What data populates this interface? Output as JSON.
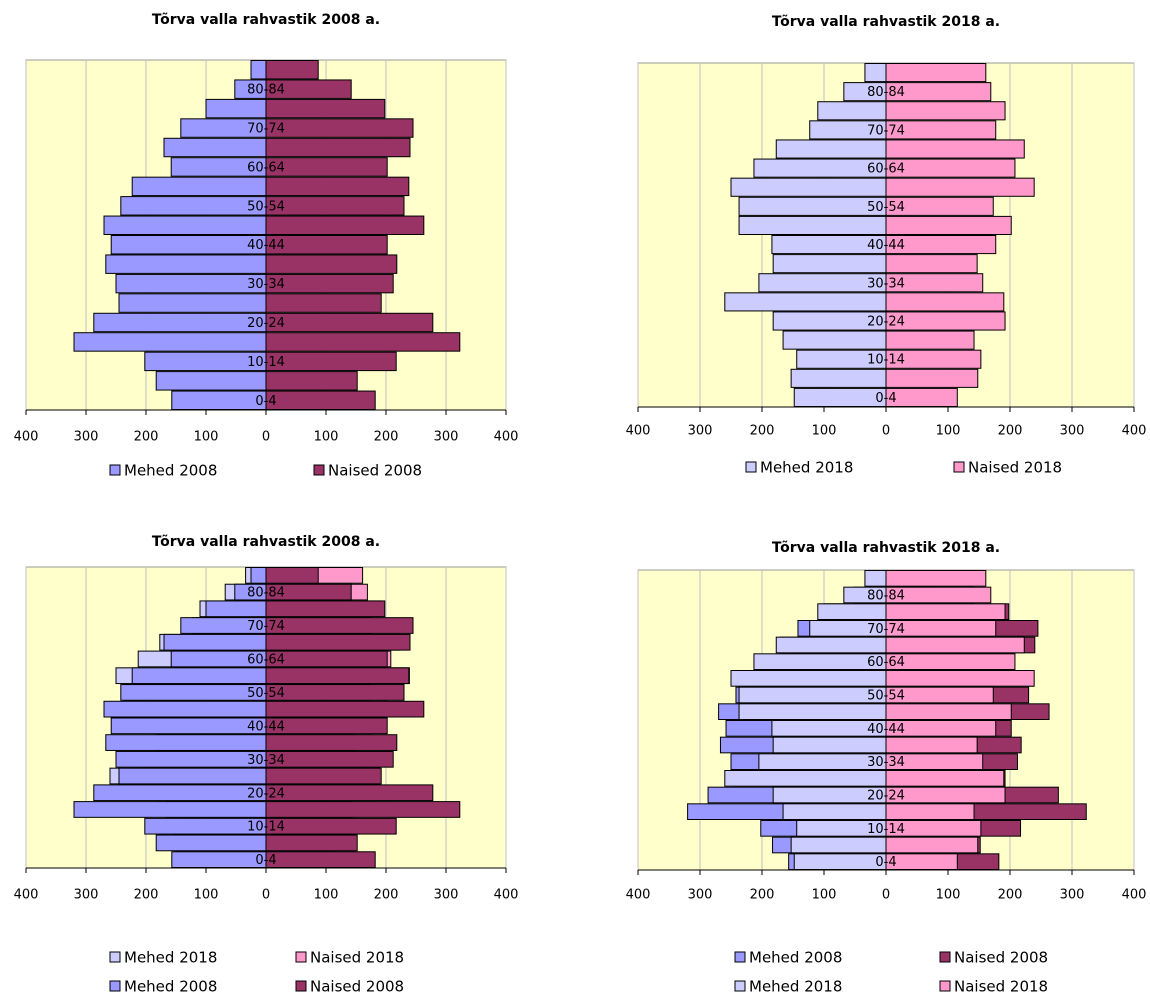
{
  "chart_data": [
    {
      "type": "pyramid",
      "title": "Tõrva valla rahvastik 2008 a.",
      "categories": [
        "0-4",
        null,
        "10-14",
        null,
        "20-24",
        null,
        "30-34",
        null,
        "40-44",
        null,
        "50-54",
        null,
        "60-64",
        null,
        "70-74",
        null,
        "80-84",
        null
      ],
      "series": [
        {
          "name": "Mehed 2008",
          "color": "#9999ff",
          "values": [
            -157,
            -183,
            -202,
            -320,
            -287,
            -245,
            -250,
            -267,
            -258,
            -270,
            -242,
            -223,
            -158,
            -170,
            -142,
            -100,
            -52,
            -25
          ]
        },
        {
          "name": "Naised 2008",
          "color": "#993366",
          "values": [
            182,
            152,
            217,
            323,
            278,
            192,
            212,
            218,
            202,
            263,
            230,
            238,
            202,
            240,
            245,
            198,
            142,
            87
          ]
        }
      ],
      "xlim": [
        -400,
        400
      ],
      "xticks": [
        {
          "value": -400,
          "label": "400"
        },
        {
          "value": -300,
          "label": "300"
        },
        {
          "value": -200,
          "label": "200"
        },
        {
          "value": -100,
          "label": "100"
        },
        0,
        100,
        200,
        300,
        400
      ],
      "grid": true,
      "negative_tick_label_color": "#ff0000",
      "plot_background": "#ffffcc"
    },
    {
      "type": "pyramid",
      "title": "Tõrva valla rahvastik 2018 a.",
      "categories": [
        "0-4",
        null,
        "10-14",
        null,
        "20-24",
        null,
        "30-34",
        null,
        "40-44",
        null,
        "50-54",
        null,
        "60-64",
        null,
        "70-74",
        null,
        "80-84",
        null
      ],
      "series": [
        {
          "name": "Mehed 2018",
          "color": "#ccccff",
          "values": [
            -148,
            -153,
            -144,
            -166,
            -182,
            -260,
            -205,
            -182,
            -184,
            -237,
            -237,
            -250,
            -213,
            -177,
            -123,
            -110,
            -68,
            -34
          ]
        },
        {
          "name": "Naised 2018",
          "color": "#ff99cc",
          "values": [
            115,
            148,
            153,
            142,
            192,
            190,
            156,
            147,
            177,
            202,
            173,
            239,
            208,
            223,
            177,
            192,
            169,
            161
          ]
        }
      ],
      "xlim": [
        -400,
        400
      ],
      "xticks": [
        {
          "value": -400,
          "label": "400"
        },
        {
          "value": -300,
          "label": "300"
        },
        {
          "value": -200,
          "label": "200"
        },
        {
          "value": -100,
          "label": "100"
        },
        0,
        100,
        200,
        300,
        400
      ],
      "grid": true,
      "negative_tick_label_color": "#ff0000",
      "plot_background": "#ffffcc"
    },
    {
      "type": "pyramid",
      "title": "Tõrva valla rahvastik 2008 a.",
      "categories": [
        "0-4",
        null,
        "10-14",
        null,
        "20-24",
        null,
        "30-34",
        null,
        "40-44",
        null,
        "50-54",
        null,
        "60-64",
        null,
        "70-74",
        null,
        "80-84",
        null
      ],
      "series": [
        {
          "name": "Mehed 2018",
          "color": "#ccccff",
          "values": [
            -148,
            -153,
            -144,
            -166,
            -182,
            -260,
            -205,
            -182,
            -184,
            -237,
            -237,
            -250,
            -213,
            -177,
            -123,
            -110,
            -68,
            -34
          ]
        },
        {
          "name": "Naised 2018",
          "color": "#ff99cc",
          "values": [
            115,
            148,
            153,
            142,
            192,
            190,
            156,
            147,
            177,
            202,
            173,
            239,
            208,
            223,
            177,
            192,
            169,
            161
          ]
        },
        {
          "name": "Mehed 2008",
          "color": "#9999ff",
          "values": [
            -157,
            -183,
            -202,
            -320,
            -287,
            -245,
            -250,
            -267,
            -258,
            -270,
            -242,
            -223,
            -158,
            -170,
            -142,
            -100,
            -52,
            -25
          ]
        },
        {
          "name": "Naised 2008",
          "color": "#993366",
          "values": [
            182,
            152,
            217,
            323,
            278,
            192,
            212,
            218,
            202,
            263,
            230,
            238,
            202,
            240,
            245,
            198,
            142,
            87
          ]
        }
      ],
      "xlim": [
        -400,
        400
      ],
      "xticks": [
        {
          "value": -400,
          "label": "400"
        },
        {
          "value": -300,
          "label": "300"
        },
        {
          "value": -200,
          "label": "200"
        },
        {
          "value": -100,
          "label": "100"
        },
        0,
        100,
        200,
        300,
        400
      ],
      "grid": true,
      "negative_tick_label_color": "#ff0000",
      "plot_background": "#ffffcc"
    },
    {
      "type": "pyramid",
      "title": "Tõrva valla rahvastik 2018 a.",
      "categories": [
        "0-4",
        null,
        "10-14",
        null,
        "20-24",
        null,
        "30-34",
        null,
        "40-44",
        null,
        "50-54",
        null,
        "60-64",
        null,
        "70-74",
        null,
        "80-84",
        null
      ],
      "series": [
        {
          "name": "Mehed 2008",
          "color": "#9999ff",
          "values": [
            -157,
            -183,
            -202,
            -320,
            -287,
            -245,
            -250,
            -267,
            -258,
            -270,
            -242,
            -223,
            -158,
            -170,
            -142,
            -100,
            -52,
            -25
          ]
        },
        {
          "name": "Naised 2008",
          "color": "#993366",
          "values": [
            182,
            152,
            217,
            323,
            278,
            192,
            212,
            218,
            202,
            263,
            230,
            238,
            202,
            240,
            245,
            198,
            142,
            87
          ]
        },
        {
          "name": "Mehed 2018",
          "color": "#ccccff",
          "values": [
            -148,
            -153,
            -144,
            -166,
            -182,
            -260,
            -205,
            -182,
            -184,
            -237,
            -237,
            -250,
            -213,
            -177,
            -123,
            -110,
            -68,
            -34
          ]
        },
        {
          "name": "Naised 2018",
          "color": "#ff99cc",
          "values": [
            115,
            148,
            153,
            142,
            192,
            190,
            156,
            147,
            177,
            202,
            173,
            239,
            208,
            223,
            177,
            192,
            169,
            161
          ]
        }
      ],
      "xlim": [
        -400,
        400
      ],
      "xticks": [
        {
          "value": -400,
          "label": "400"
        },
        {
          "value": -300,
          "label": "300"
        },
        {
          "value": -200,
          "label": "200"
        },
        {
          "value": -100,
          "label": "100"
        },
        0,
        100,
        200,
        300,
        400
      ],
      "grid": true,
      "negative_tick_label_color": "#ff0000",
      "plot_background": "#ffffcc"
    }
  ]
}
